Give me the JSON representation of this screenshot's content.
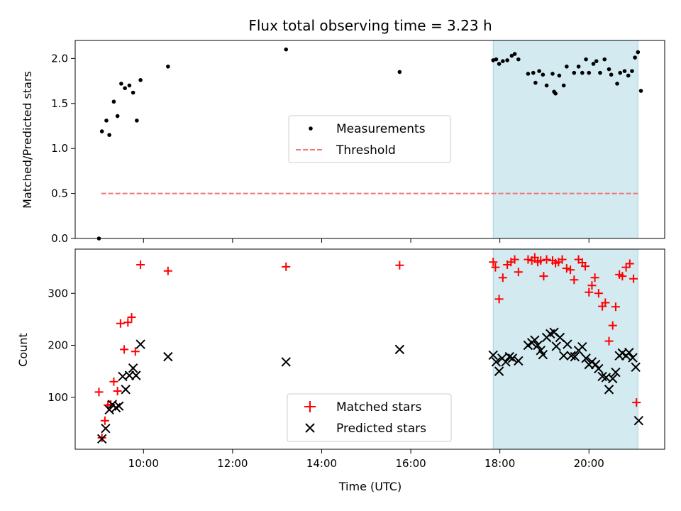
{
  "chart_data": [
    {
      "type": "scatter",
      "title": "Flux total observing time = 3.23 h",
      "xlabel": "",
      "ylabel": "Matched/Predicted stars",
      "xlim": [
        "08:28",
        "21:42"
      ],
      "ylim": [
        0,
        2.2
      ],
      "yticks": [
        0.0,
        0.5,
        1.0,
        1.5,
        2.0
      ],
      "ytick_labels": [
        "0.0",
        "0.5",
        "1.0",
        "1.5",
        "2.0"
      ],
      "highlight_span": {
        "start": "17:51",
        "end": "21:06",
        "color": "#d3eaf0"
      },
      "legend": {
        "placement": "center",
        "entries": [
          "Measurements",
          "Threshold"
        ]
      },
      "series": [
        {
          "name": "Measurements",
          "color": "#000000",
          "marker": "dot",
          "points": [
            [
              "09:00",
              0.0
            ],
            [
              "09:04",
              1.19
            ],
            [
              "09:10",
              1.31
            ],
            [
              "09:14",
              1.15
            ],
            [
              "09:20",
              1.52
            ],
            [
              "09:25",
              1.36
            ],
            [
              "09:30",
              1.72
            ],
            [
              "09:35",
              1.67
            ],
            [
              "09:41",
              1.7
            ],
            [
              "09:46",
              1.62
            ],
            [
              "09:51",
              1.31
            ],
            [
              "09:56",
              1.76
            ],
            [
              "10:33",
              1.91
            ],
            [
              "13:12",
              2.1
            ],
            [
              "15:45",
              1.85
            ],
            [
              "17:51",
              1.98
            ],
            [
              "17:55",
              1.99
            ],
            [
              "17:59",
              1.94
            ],
            [
              "18:04",
              1.97
            ],
            [
              "18:10",
              1.98
            ],
            [
              "18:16",
              2.03
            ],
            [
              "18:20",
              2.05
            ],
            [
              "18:25",
              1.99
            ],
            [
              "18:38",
              1.83
            ],
            [
              "18:45",
              1.84
            ],
            [
              "18:48",
              1.73
            ],
            [
              "18:53",
              1.86
            ],
            [
              "18:58",
              1.82
            ],
            [
              "19:03",
              1.7
            ],
            [
              "19:11",
              1.83
            ],
            [
              "19:13",
              1.63
            ],
            [
              "19:15",
              1.61
            ],
            [
              "19:20",
              1.81
            ],
            [
              "19:26",
              1.7
            ],
            [
              "19:30",
              1.91
            ],
            [
              "19:40",
              1.84
            ],
            [
              "19:46",
              1.91
            ],
            [
              "19:51",
              1.84
            ],
            [
              "19:56",
              1.99
            ],
            [
              "20:00",
              1.84
            ],
            [
              "20:06",
              1.94
            ],
            [
              "20:10",
              1.97
            ],
            [
              "20:15",
              1.84
            ],
            [
              "20:21",
              1.99
            ],
            [
              "20:27",
              1.88
            ],
            [
              "20:30",
              1.82
            ],
            [
              "20:38",
              1.72
            ],
            [
              "20:42",
              1.84
            ],
            [
              "20:48",
              1.86
            ],
            [
              "20:53",
              1.81
            ],
            [
              "20:58",
              1.86
            ],
            [
              "21:02",
              2.01
            ],
            [
              "21:06",
              2.07
            ],
            [
              "21:10",
              1.64
            ]
          ]
        },
        {
          "name": "Threshold",
          "color": "#f07575",
          "style": "dashed",
          "points": [
            [
              "09:03",
              0.5
            ],
            [
              "21:06",
              0.5
            ]
          ]
        }
      ]
    },
    {
      "type": "scatter",
      "title": "",
      "xlabel": "Time (UTC)",
      "ylabel": "Count",
      "xlim": [
        "08:28",
        "21:42"
      ],
      "ylim": [
        0,
        385
      ],
      "yticks": [
        100,
        200,
        300
      ],
      "ytick_labels": [
        "100",
        "200",
        "300"
      ],
      "xticks": [
        "10:00",
        "12:00",
        "14:00",
        "16:00",
        "18:00",
        "20:00"
      ],
      "xtick_labels": [
        "10:00",
        "12:00",
        "14:00",
        "16:00",
        "18:00",
        "20:00"
      ],
      "highlight_span": {
        "start": "17:51",
        "end": "21:06",
        "color": "#d3eaf0"
      },
      "legend": {
        "placement": "lower center",
        "entries": [
          "Matched stars",
          "Predicted stars"
        ]
      },
      "series": [
        {
          "name": "Matched stars",
          "color": "#ff0000",
          "marker": "plus",
          "points": [
            [
              "09:00",
              110
            ],
            [
              "09:04",
              22
            ],
            [
              "09:08",
              55
            ],
            [
              "09:12",
              85
            ],
            [
              "09:16",
              86
            ],
            [
              "09:20",
              130
            ],
            [
              "09:25",
              112
            ],
            [
              "09:29",
              242
            ],
            [
              "09:34",
              192
            ],
            [
              "09:39",
              244
            ],
            [
              "09:44",
              254
            ],
            [
              "09:49",
              188
            ],
            [
              "09:56",
              355
            ],
            [
              "10:33",
              343
            ],
            [
              "13:12",
              351
            ],
            [
              "15:45",
              354
            ],
            [
              "17:51",
              360
            ],
            [
              "17:54",
              350
            ],
            [
              "17:59",
              289
            ],
            [
              "18:04",
              330
            ],
            [
              "18:10",
              355
            ],
            [
              "18:15",
              360
            ],
            [
              "18:20",
              365
            ],
            [
              "18:25",
              341
            ],
            [
              "18:38",
              365
            ],
            [
              "18:43",
              363
            ],
            [
              "18:47",
              369
            ],
            [
              "18:51",
              360
            ],
            [
              "18:55",
              363
            ],
            [
              "18:59",
              333
            ],
            [
              "19:03",
              365
            ],
            [
              "19:11",
              363
            ],
            [
              "19:15",
              358
            ],
            [
              "19:19",
              360
            ],
            [
              "19:24",
              365
            ],
            [
              "19:30",
              348
            ],
            [
              "19:35",
              345
            ],
            [
              "19:40",
              326
            ],
            [
              "19:46",
              365
            ],
            [
              "19:51",
              359
            ],
            [
              "19:55",
              352
            ],
            [
              "20:00",
              302
            ],
            [
              "20:04",
              315
            ],
            [
              "20:08",
              330
            ],
            [
              "20:13",
              300
            ],
            [
              "20:18",
              275
            ],
            [
              "20:22",
              282
            ],
            [
              "20:27",
              208
            ],
            [
              "20:32",
              238
            ],
            [
              "20:36",
              274
            ],
            [
              "20:41",
              336
            ],
            [
              "20:45",
              333
            ],
            [
              "20:50",
              350
            ],
            [
              "20:55",
              357
            ],
            [
              "21:00",
              328
            ],
            [
              "21:04",
              90
            ]
          ]
        },
        {
          "name": "Predicted stars",
          "color": "#000000",
          "marker": "x",
          "points": [
            [
              "09:04",
              20
            ],
            [
              "09:09",
              40
            ],
            [
              "09:14",
              76
            ],
            [
              "09:18",
              86
            ],
            [
              "09:23",
              80
            ],
            [
              "09:27",
              83
            ],
            [
              "09:32",
              140
            ],
            [
              "09:36",
              115
            ],
            [
              "09:41",
              142
            ],
            [
              "09:46",
              156
            ],
            [
              "09:50",
              142
            ],
            [
              "09:56",
              202
            ],
            [
              "10:33",
              178
            ],
            [
              "13:12",
              168
            ],
            [
              "15:45",
              192
            ],
            [
              "17:51",
              181
            ],
            [
              "17:55",
              168
            ],
            [
              "17:59",
              150
            ],
            [
              "18:03",
              175
            ],
            [
              "18:08",
              168
            ],
            [
              "18:13",
              178
            ],
            [
              "18:17",
              175
            ],
            [
              "18:25",
              170
            ],
            [
              "18:38",
              200
            ],
            [
              "18:43",
              205
            ],
            [
              "18:47",
              210
            ],
            [
              "18:51",
              200
            ],
            [
              "18:55",
              190
            ],
            [
              "18:58",
              182
            ],
            [
              "19:03",
              215
            ],
            [
              "19:08",
              222
            ],
            [
              "19:13",
              225
            ],
            [
              "19:16",
              198
            ],
            [
              "19:21",
              215
            ],
            [
              "19:26",
              180
            ],
            [
              "19:31",
              202
            ],
            [
              "19:36",
              180
            ],
            [
              "19:41",
              178
            ],
            [
              "19:46",
              190
            ],
            [
              "19:51",
              197
            ],
            [
              "19:56",
              175
            ],
            [
              "20:00",
              163
            ],
            [
              "20:04",
              168
            ],
            [
              "20:09",
              163
            ],
            [
              "20:13",
              155
            ],
            [
              "20:18",
              140
            ],
            [
              "20:23",
              138
            ],
            [
              "20:27",
              115
            ],
            [
              "20:32",
              136
            ],
            [
              "20:36",
              148
            ],
            [
              "20:41",
              180
            ],
            [
              "20:45",
              185
            ],
            [
              "20:50",
              180
            ],
            [
              "20:54",
              186
            ],
            [
              "20:59",
              176
            ],
            [
              "21:03",
              158
            ],
            [
              "21:07",
              55
            ]
          ]
        }
      ]
    }
  ]
}
